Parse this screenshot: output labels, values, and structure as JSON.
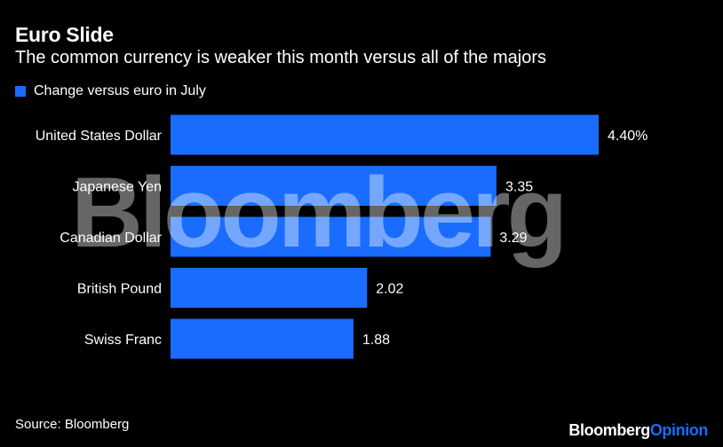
{
  "title": "Euro Slide",
  "subtitle": "The common currency is weaker this month versus all of the majors",
  "legend": {
    "label": "Change versus euro in July",
    "color": "#1a6cff"
  },
  "chart_data": {
    "type": "bar",
    "orientation": "horizontal",
    "categories": [
      "United States Dollar",
      "Japanese Yen",
      "Canadian Dollar",
      "British Pound",
      "Swiss Franc"
    ],
    "series": [
      {
        "name": "Change versus euro in July",
        "values": [
          4.4,
          3.35,
          3.29,
          2.02,
          1.88
        ]
      }
    ],
    "value_labels": [
      "4.40%",
      "3.35",
      "3.29",
      "2.02",
      "1.88"
    ],
    "xlim": [
      0,
      4.4
    ],
    "grid": false,
    "legend_position": "top-left"
  },
  "watermark": "Bloomberg",
  "source": "Source: Bloomberg",
  "brand": {
    "main": "Bloomberg",
    "accent": "Opinion",
    "accent_color": "#1a6cff"
  },
  "colors": {
    "background": "#000000",
    "bar": "#1a6cff",
    "text": "#ffffff"
  }
}
